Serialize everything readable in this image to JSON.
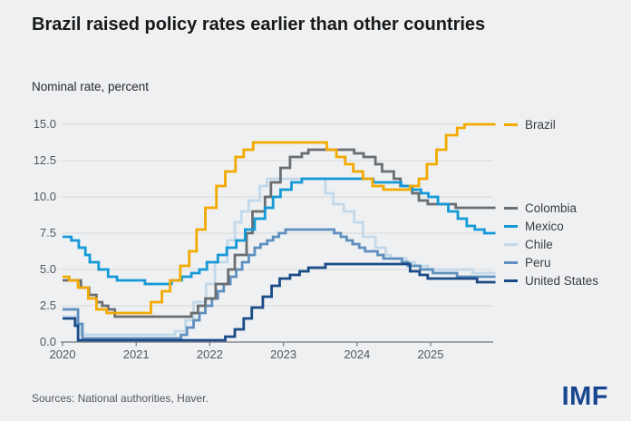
{
  "header": {
    "title": "Brazil raised policy rates earlier than other countries",
    "subtitle": "Nominal rate, percent"
  },
  "footer": {
    "sources": "Sources: National authorities, Haver.",
    "logo": "IMF"
  },
  "colors": {
    "background": "#eef0f2",
    "gridline": "#d5d8da",
    "axis": "#74787b",
    "tick_text": "#53575a",
    "title_text": "#17191b",
    "logo_blue": "#17468f"
  },
  "chart_data": {
    "type": "line",
    "line_style": "step-after",
    "title": "Brazil raised policy rates earlier than other countries",
    "ylabel": "Nominal rate, percent",
    "xlabel": "",
    "grid": "horizontal",
    "legend_position": "right",
    "xlim": [
      2020,
      2026
    ],
    "ylim": [
      0,
      15
    ],
    "x_end": 2025.88,
    "y_ticks": [
      {
        "v": 0,
        "label": "0.0"
      },
      {
        "v": 2.5,
        "label": "2.5"
      },
      {
        "v": 5,
        "label": "5.0"
      },
      {
        "v": 7.5,
        "label": "7.5"
      },
      {
        "v": 10,
        "label": "10.0"
      },
      {
        "v": 12.5,
        "label": "12.5"
      },
      {
        "v": 15,
        "label": "15.0"
      }
    ],
    "x_ticks": [
      {
        "v": 2020,
        "label": "2020"
      },
      {
        "v": 2021,
        "label": "2021"
      },
      {
        "v": 2022,
        "label": "2022"
      },
      {
        "v": 2023,
        "label": "2023"
      },
      {
        "v": 2024,
        "label": "2024"
      },
      {
        "v": 2025,
        "label": "2025"
      }
    ],
    "draw_order": [
      "Chile",
      "Peru",
      "United States",
      "Colombia",
      "Mexico",
      "Brazil"
    ],
    "series": [
      {
        "name": "Brazil",
        "color": "#f2a900",
        "points": [
          [
            2020.0,
            4.5
          ],
          [
            2020.09,
            4.25
          ],
          [
            2020.21,
            3.75
          ],
          [
            2020.35,
            3.0
          ],
          [
            2020.46,
            2.25
          ],
          [
            2020.6,
            2.0
          ],
          [
            2021.2,
            2.75
          ],
          [
            2021.35,
            3.5
          ],
          [
            2021.46,
            4.25
          ],
          [
            2021.6,
            5.25
          ],
          [
            2021.72,
            6.25
          ],
          [
            2021.82,
            7.75
          ],
          [
            2021.94,
            9.25
          ],
          [
            2022.09,
            10.75
          ],
          [
            2022.21,
            11.75
          ],
          [
            2022.35,
            12.75
          ],
          [
            2022.46,
            13.25
          ],
          [
            2022.59,
            13.75
          ],
          [
            2023.59,
            13.25
          ],
          [
            2023.72,
            12.75
          ],
          [
            2023.84,
            12.25
          ],
          [
            2023.95,
            11.75
          ],
          [
            2024.08,
            11.25
          ],
          [
            2024.21,
            10.75
          ],
          [
            2024.36,
            10.5
          ],
          [
            2024.72,
            10.75
          ],
          [
            2024.84,
            11.25
          ],
          [
            2024.95,
            12.25
          ],
          [
            2025.08,
            13.25
          ],
          [
            2025.21,
            14.25
          ],
          [
            2025.36,
            14.75
          ],
          [
            2025.46,
            15.0
          ]
        ]
      },
      {
        "name": "Colombia",
        "color": "#6b6e71",
        "points": [
          [
            2020.0,
            4.25
          ],
          [
            2020.25,
            3.75
          ],
          [
            2020.36,
            3.25
          ],
          [
            2020.46,
            2.75
          ],
          [
            2020.54,
            2.5
          ],
          [
            2020.62,
            2.25
          ],
          [
            2020.71,
            1.75
          ],
          [
            2021.75,
            2.0
          ],
          [
            2021.84,
            2.5
          ],
          [
            2021.94,
            3.0
          ],
          [
            2022.08,
            4.0
          ],
          [
            2022.25,
            5.0
          ],
          [
            2022.34,
            6.0
          ],
          [
            2022.5,
            7.5
          ],
          [
            2022.58,
            9.0
          ],
          [
            2022.75,
            10.0
          ],
          [
            2022.83,
            11.0
          ],
          [
            2022.96,
            12.0
          ],
          [
            2023.09,
            12.75
          ],
          [
            2023.25,
            13.0
          ],
          [
            2023.34,
            13.25
          ],
          [
            2023.96,
            13.0
          ],
          [
            2024.09,
            12.75
          ],
          [
            2024.25,
            12.25
          ],
          [
            2024.34,
            11.75
          ],
          [
            2024.5,
            11.25
          ],
          [
            2024.59,
            10.75
          ],
          [
            2024.75,
            10.25
          ],
          [
            2024.84,
            9.75
          ],
          [
            2024.96,
            9.5
          ],
          [
            2025.34,
            9.25
          ]
        ]
      },
      {
        "name": "Mexico",
        "color": "#1499d6",
        "points": [
          [
            2020.0,
            7.25
          ],
          [
            2020.12,
            7.0
          ],
          [
            2020.22,
            6.5
          ],
          [
            2020.31,
            6.0
          ],
          [
            2020.37,
            5.5
          ],
          [
            2020.49,
            5.0
          ],
          [
            2020.62,
            4.5
          ],
          [
            2020.74,
            4.25
          ],
          [
            2021.12,
            4.0
          ],
          [
            2021.48,
            4.25
          ],
          [
            2021.62,
            4.5
          ],
          [
            2021.75,
            4.75
          ],
          [
            2021.86,
            5.0
          ],
          [
            2021.96,
            5.5
          ],
          [
            2022.11,
            6.0
          ],
          [
            2022.23,
            6.5
          ],
          [
            2022.36,
            7.0
          ],
          [
            2022.48,
            7.75
          ],
          [
            2022.61,
            8.5
          ],
          [
            2022.75,
            9.25
          ],
          [
            2022.86,
            10.0
          ],
          [
            2022.96,
            10.5
          ],
          [
            2023.11,
            11.0
          ],
          [
            2023.25,
            11.25
          ],
          [
            2024.22,
            11.0
          ],
          [
            2024.6,
            10.75
          ],
          [
            2024.74,
            10.5
          ],
          [
            2024.87,
            10.25
          ],
          [
            2024.97,
            10.0
          ],
          [
            2025.1,
            9.5
          ],
          [
            2025.24,
            9.0
          ],
          [
            2025.37,
            8.5
          ],
          [
            2025.49,
            8.0
          ],
          [
            2025.6,
            7.75
          ],
          [
            2025.73,
            7.5
          ]
        ]
      },
      {
        "name": "Chile",
        "color": "#c3d9ea",
        "points": [
          [
            2020.0,
            1.75
          ],
          [
            2020.21,
            1.0
          ],
          [
            2020.25,
            0.5
          ],
          [
            2021.53,
            0.75
          ],
          [
            2021.67,
            1.5
          ],
          [
            2021.78,
            2.75
          ],
          [
            2021.95,
            4.0
          ],
          [
            2022.07,
            5.5
          ],
          [
            2022.24,
            7.0
          ],
          [
            2022.34,
            8.25
          ],
          [
            2022.43,
            9.0
          ],
          [
            2022.53,
            9.75
          ],
          [
            2022.68,
            10.75
          ],
          [
            2022.78,
            11.25
          ],
          [
            2023.57,
            10.25
          ],
          [
            2023.68,
            9.5
          ],
          [
            2023.82,
            9.0
          ],
          [
            2023.96,
            8.25
          ],
          [
            2024.08,
            7.25
          ],
          [
            2024.25,
            6.5
          ],
          [
            2024.39,
            6.0
          ],
          [
            2024.46,
            5.75
          ],
          [
            2024.67,
            5.5
          ],
          [
            2024.79,
            5.25
          ],
          [
            2024.96,
            5.0
          ],
          [
            2025.57,
            4.75
          ]
        ]
      },
      {
        "name": "Peru",
        "color": "#5e8fbe",
        "points": [
          [
            2020.0,
            2.25
          ],
          [
            2020.21,
            1.25
          ],
          [
            2020.27,
            0.25
          ],
          [
            2021.61,
            0.5
          ],
          [
            2021.69,
            1.0
          ],
          [
            2021.78,
            1.5
          ],
          [
            2021.86,
            2.0
          ],
          [
            2021.94,
            2.5
          ],
          [
            2022.03,
            3.0
          ],
          [
            2022.11,
            3.5
          ],
          [
            2022.19,
            4.0
          ],
          [
            2022.28,
            4.5
          ],
          [
            2022.36,
            5.0
          ],
          [
            2022.44,
            5.5
          ],
          [
            2022.53,
            6.0
          ],
          [
            2022.61,
            6.5
          ],
          [
            2022.69,
            6.75
          ],
          [
            2022.78,
            7.0
          ],
          [
            2022.86,
            7.25
          ],
          [
            2022.94,
            7.5
          ],
          [
            2023.03,
            7.75
          ],
          [
            2023.69,
            7.5
          ],
          [
            2023.78,
            7.25
          ],
          [
            2023.86,
            7.0
          ],
          [
            2023.94,
            6.75
          ],
          [
            2024.03,
            6.5
          ],
          [
            2024.11,
            6.25
          ],
          [
            2024.28,
            6.0
          ],
          [
            2024.36,
            5.75
          ],
          [
            2024.61,
            5.5
          ],
          [
            2024.69,
            5.25
          ],
          [
            2024.86,
            5.0
          ],
          [
            2025.03,
            4.75
          ],
          [
            2025.36,
            4.5
          ]
        ]
      },
      {
        "name": "United States",
        "color": "#1a4b87",
        "points": [
          [
            2020.0,
            1.625
          ],
          [
            2020.17,
            1.125
          ],
          [
            2020.21,
            0.125
          ],
          [
            2022.21,
            0.375
          ],
          [
            2022.34,
            0.875
          ],
          [
            2022.46,
            1.625
          ],
          [
            2022.57,
            2.375
          ],
          [
            2022.72,
            3.125
          ],
          [
            2022.84,
            3.875
          ],
          [
            2022.95,
            4.375
          ],
          [
            2023.09,
            4.625
          ],
          [
            2023.22,
            4.875
          ],
          [
            2023.34,
            5.125
          ],
          [
            2023.57,
            5.375
          ],
          [
            2024.72,
            4.875
          ],
          [
            2024.85,
            4.625
          ],
          [
            2024.96,
            4.375
          ],
          [
            2025.63,
            4.125
          ]
        ]
      }
    ]
  }
}
